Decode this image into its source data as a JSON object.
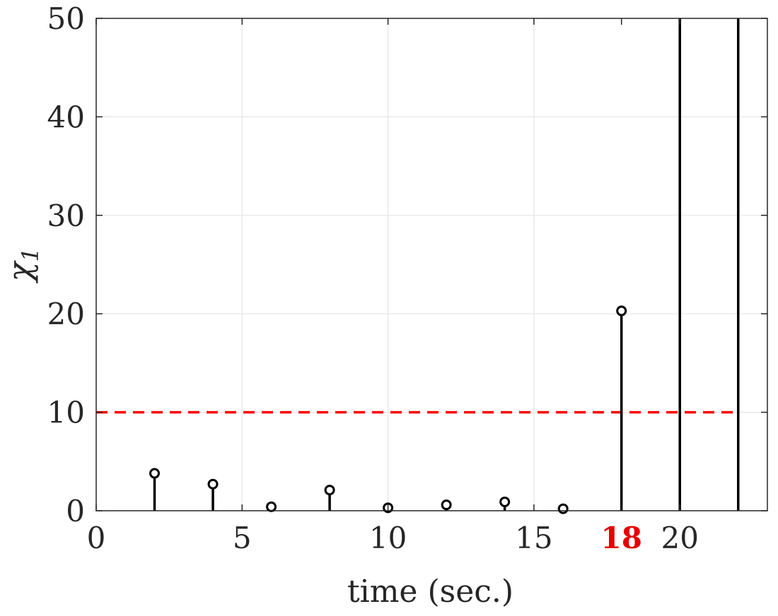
{
  "chart_data": {
    "type": "stem",
    "xlabel": "time (sec.)",
    "ylabel": "χ",
    "ylabel_subscript": "1",
    "xlim": [
      0,
      23
    ],
    "ylim": [
      0,
      50
    ],
    "xticks": [
      {
        "value": 0,
        "label": "0"
      },
      {
        "value": 5,
        "label": "5"
      },
      {
        "value": 10,
        "label": "10"
      },
      {
        "value": 15,
        "label": "15"
      },
      {
        "value": 18,
        "label": "18",
        "highlight": true
      },
      {
        "value": 20,
        "label": "20"
      }
    ],
    "yticks": [
      {
        "value": 0,
        "label": "0"
      },
      {
        "value": 10,
        "label": "10"
      },
      {
        "value": 20,
        "label": "20"
      },
      {
        "value": 30,
        "label": "30"
      },
      {
        "value": 40,
        "label": "40"
      },
      {
        "value": 50,
        "label": "50"
      }
    ],
    "grid": true,
    "stems": [
      {
        "x": 2,
        "y": 3.8
      },
      {
        "x": 4,
        "y": 2.7
      },
      {
        "x": 6,
        "y": 0.4
      },
      {
        "x": 8,
        "y": 2.1
      },
      {
        "x": 10,
        "y": 0.3
      },
      {
        "x": 12,
        "y": 0.6
      },
      {
        "x": 14,
        "y": 0.9
      },
      {
        "x": 16,
        "y": 0.2
      },
      {
        "x": 18,
        "y": 20.3
      },
      {
        "x": 20,
        "y": 60,
        "clipped": true
      },
      {
        "x": 22,
        "y": 60,
        "clipped": true
      }
    ],
    "threshold": {
      "y": 10,
      "color": "#ff0000",
      "style": "dashed"
    },
    "colors": {
      "stem": "#000000",
      "threshold": "#ff0000",
      "highlight_tick": "#e60000",
      "grid": "#e5e5e5",
      "axis": "#262626"
    }
  }
}
